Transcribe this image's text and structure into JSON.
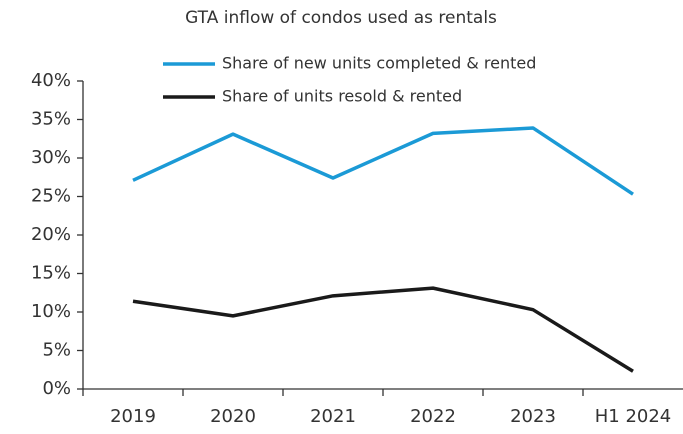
{
  "chart_data": {
    "type": "line",
    "title": "GTA inflow of condos used as rentals",
    "categories": [
      "2019",
      "2020",
      "2021",
      "2022",
      "2023",
      "H1 2024"
    ],
    "series": [
      {
        "name": "Share of new units completed & rented",
        "color": "#1b9ad6",
        "values": [
          27.1,
          33.1,
          27.4,
          33.2,
          33.9,
          25.3
        ]
      },
      {
        "name": "Share of units resold & rented",
        "color": "#1a1a1a",
        "values": [
          11.4,
          9.5,
          12.1,
          13.1,
          10.3,
          2.3
        ]
      }
    ],
    "ylim": [
      0,
      40
    ],
    "yticks": [
      {
        "value": 0,
        "label": "0%"
      },
      {
        "value": 5,
        "label": "5%"
      },
      {
        "value": 10,
        "label": "10%"
      },
      {
        "value": 15,
        "label": "15%"
      },
      {
        "value": 20,
        "label": "20%"
      },
      {
        "value": 25,
        "label": "25%"
      },
      {
        "value": 30,
        "label": "30%"
      },
      {
        "value": 35,
        "label": "35%"
      },
      {
        "value": 40,
        "label": "40%"
      }
    ],
    "grid": false
  }
}
